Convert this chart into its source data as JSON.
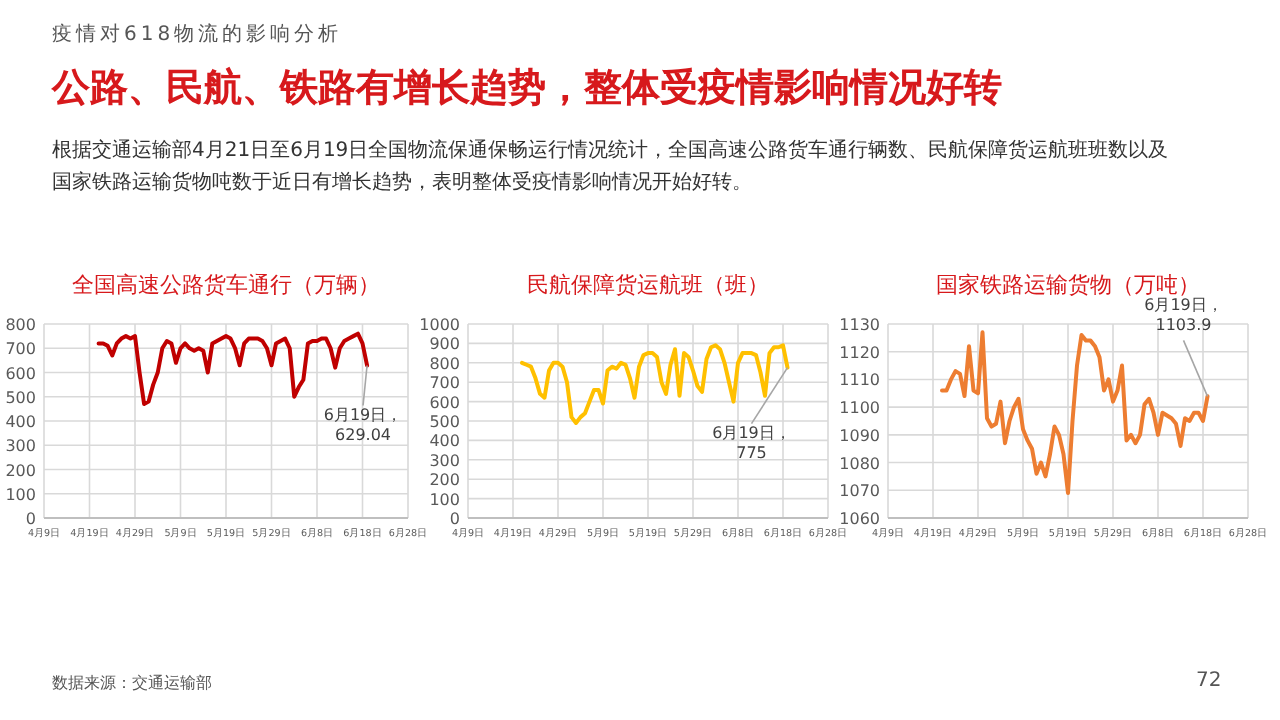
{
  "chart_data": [
    {
      "type": "other",
      "subtitle": "疫情对618物流的影响分析",
      "title": "公路、民航、铁路有增长趋势，整体受疫情影响情况好转",
      "annotations": [
        "根据交通运输部4月21日至6月19日全国物流保通保畅运行情况统计，全国高速公路货车通行辆数、民航保障货运航班班数以及国家铁路运输货物吨数于近日有增长趋势，表明整体受疫情影响情况开始好转。",
        "数据来源：交通运输部",
        "72"
      ]
    },
    {
      "type": "line",
      "title": "全国高速公路货车通行（万辆）",
      "grid": true,
      "x": [
        "--04-21",
        "--04-22",
        "--04-23",
        "--04-24",
        "--04-25",
        "--04-26",
        "--04-27",
        "--04-28",
        "--04-29",
        "--04-30",
        "--05-01",
        "--05-02",
        "--05-03",
        "--05-04",
        "--05-05",
        "--05-06",
        "--05-07",
        "--05-08",
        "--05-09",
        "--05-10",
        "--05-11",
        "--05-12",
        "--05-13",
        "--05-14",
        "--05-15",
        "--05-16",
        "--05-17",
        "--05-18",
        "--05-19",
        "--05-20",
        "--05-21",
        "--05-22",
        "--05-23",
        "--05-24",
        "--05-25",
        "--05-26",
        "--05-27",
        "--05-28",
        "--05-29",
        "--05-30",
        "--05-31",
        "--06-01",
        "--06-02",
        "--06-03",
        "--06-04",
        "--06-05",
        "--06-06",
        "--06-07",
        "--06-08",
        "--06-09",
        "--06-10",
        "--06-11",
        "--06-12",
        "--06-13",
        "--06-14",
        "--06-15",
        "--06-16",
        "--06-17",
        "--06-18",
        "--06-19"
      ],
      "series": [
        {
          "color": "#c00000",
          "values": [
            720,
            720,
            710,
            670,
            720,
            740,
            750,
            740,
            750,
            600,
            470,
            480,
            550,
            600,
            700,
            730,
            720,
            640,
            700,
            720,
            700,
            690,
            700,
            690,
            600,
            720,
            730,
            740,
            750,
            740,
            700,
            630,
            720,
            740,
            740,
            740,
            730,
            700,
            630,
            720,
            730,
            740,
            700,
            500,
            540,
            570,
            720,
            730,
            730,
            740,
            740,
            700,
            620,
            700,
            730,
            740,
            750,
            760,
            720,
            629.04
          ]
        }
      ],
      "xlim": [
        "--04-09",
        "--06-28"
      ],
      "xticks": [
        {
          "value": "--04-09",
          "label": "4月9日"
        },
        {
          "value": "--04-19",
          "label": "4月19日"
        },
        {
          "value": "--04-29",
          "label": "4月29日"
        },
        {
          "value": "--05-09",
          "label": "5月9日"
        },
        {
          "value": "--05-19",
          "label": "5月19日"
        },
        {
          "value": "--05-29",
          "label": "5月29日"
        },
        {
          "value": "--06-08",
          "label": "6月8日"
        },
        {
          "value": "--06-18",
          "label": "6月18日"
        },
        {
          "value": "--06-28",
          "label": "6月28日"
        }
      ],
      "ylim": [
        0,
        800
      ],
      "yticks": [
        0,
        100,
        200,
        300,
        400,
        500,
        600,
        700,
        800
      ],
      "annotations": [
        {
          "text": "6月19日，629.04",
          "x": "--06-19",
          "y": 629.04
        }
      ]
    },
    {
      "type": "line",
      "title": "民航保障货运航班（班）",
      "grid": true,
      "x": [
        "--04-21",
        "--04-22",
        "--04-23",
        "--04-24",
        "--04-25",
        "--04-26",
        "--04-27",
        "--04-28",
        "--04-29",
        "--04-30",
        "--05-01",
        "--05-02",
        "--05-03",
        "--05-04",
        "--05-05",
        "--05-06",
        "--05-07",
        "--05-08",
        "--05-09",
        "--05-10",
        "--05-11",
        "--05-12",
        "--05-13",
        "--05-14",
        "--05-15",
        "--05-16",
        "--05-17",
        "--05-18",
        "--05-19",
        "--05-20",
        "--05-21",
        "--05-22",
        "--05-23",
        "--05-24",
        "--05-25",
        "--05-26",
        "--05-27",
        "--05-28",
        "--05-29",
        "--05-30",
        "--05-31",
        "--06-01",
        "--06-02",
        "--06-03",
        "--06-04",
        "--06-05",
        "--06-06",
        "--06-07",
        "--06-08",
        "--06-09",
        "--06-10",
        "--06-11",
        "--06-12",
        "--06-13",
        "--06-14",
        "--06-15",
        "--06-16",
        "--06-17",
        "--06-18",
        "--06-19"
      ],
      "series": [
        {
          "color": "#ffc000",
          "values": [
            800,
            790,
            780,
            720,
            640,
            620,
            760,
            800,
            800,
            780,
            700,
            520,
            490,
            520,
            540,
            600,
            660,
            660,
            590,
            760,
            780,
            770,
            800,
            790,
            720,
            620,
            780,
            840,
            850,
            850,
            830,
            700,
            640,
            790,
            870,
            630,
            850,
            830,
            760,
            680,
            650,
            820,
            880,
            890,
            870,
            800,
            700,
            600,
            800,
            850,
            850,
            850,
            840,
            750,
            630,
            850,
            880,
            880,
            890,
            775
          ]
        }
      ],
      "xlim": [
        "--04-09",
        "--06-28"
      ],
      "xticks": [
        {
          "value": "--04-09",
          "label": "4月9日"
        },
        {
          "value": "--04-19",
          "label": "4月19日"
        },
        {
          "value": "--04-29",
          "label": "4月29日"
        },
        {
          "value": "--05-09",
          "label": "5月9日"
        },
        {
          "value": "--05-19",
          "label": "5月19日"
        },
        {
          "value": "--05-29",
          "label": "5月29日"
        },
        {
          "value": "--06-08",
          "label": "6月8日"
        },
        {
          "value": "--06-18",
          "label": "6月18日"
        },
        {
          "value": "--06-28",
          "label": "6月28日"
        }
      ],
      "ylim": [
        0,
        1000
      ],
      "yticks": [
        0,
        100,
        200,
        300,
        400,
        500,
        600,
        700,
        800,
        900,
        1000
      ],
      "annotations": [
        {
          "text": "6月19日，775",
          "x": "--06-19",
          "y": 775
        }
      ]
    },
    {
      "type": "line",
      "title": "国家铁路运输货物（万吨）",
      "grid": true,
      "x": [
        "--04-21",
        "--04-22",
        "--04-23",
        "--04-24",
        "--04-25",
        "--04-26",
        "--04-27",
        "--04-28",
        "--04-29",
        "--04-30",
        "--05-01",
        "--05-02",
        "--05-03",
        "--05-04",
        "--05-05",
        "--05-06",
        "--05-07",
        "--05-08",
        "--05-09",
        "--05-10",
        "--05-11",
        "--05-12",
        "--05-13",
        "--05-14",
        "--05-15",
        "--05-16",
        "--05-17",
        "--05-18",
        "--05-19",
        "--05-20",
        "--05-21",
        "--05-22",
        "--05-23",
        "--05-24",
        "--05-25",
        "--05-26",
        "--05-27",
        "--05-28",
        "--05-29",
        "--05-30",
        "--05-31",
        "--06-01",
        "--06-02",
        "--06-03",
        "--06-04",
        "--06-05",
        "--06-06",
        "--06-07",
        "--06-08",
        "--06-09",
        "--06-10",
        "--06-11",
        "--06-12",
        "--06-13",
        "--06-14",
        "--06-15",
        "--06-16",
        "--06-17",
        "--06-18",
        "--06-19"
      ],
      "series": [
        {
          "color": "#ed7d31",
          "values": [
            1106,
            1106,
            1110,
            1113,
            1112,
            1104,
            1122,
            1106,
            1105,
            1127,
            1096,
            1093,
            1094,
            1102,
            1087,
            1095,
            1100,
            1103,
            1092,
            1088,
            1085,
            1076,
            1080,
            1075,
            1083,
            1093,
            1090,
            1083,
            1069,
            1095,
            1115,
            1126,
            1124,
            1124,
            1122,
            1118,
            1106,
            1110,
            1102,
            1106,
            1115,
            1088,
            1090,
            1087,
            1090,
            1101,
            1103,
            1098,
            1090,
            1098,
            1097,
            1096,
            1094,
            1086,
            1096,
            1095,
            1098,
            1098,
            1095,
            1103.9
          ]
        }
      ],
      "xlim": [
        "--04-09",
        "--06-28"
      ],
      "xticks": [
        {
          "value": "--04-09",
          "label": "4月9日"
        },
        {
          "value": "--04-19",
          "label": "4月19日"
        },
        {
          "value": "--04-29",
          "label": "4月29日"
        },
        {
          "value": "--05-09",
          "label": "5月9日"
        },
        {
          "value": "--05-19",
          "label": "5月19日"
        },
        {
          "value": "--05-29",
          "label": "5月29日"
        },
        {
          "value": "--06-08",
          "label": "6月8日"
        },
        {
          "value": "--06-18",
          "label": "6月18日"
        },
        {
          "value": "--06-28",
          "label": "6月28日"
        }
      ],
      "ylim": [
        1060,
        1130
      ],
      "yticks": [
        1060,
        1070,
        1080,
        1090,
        1100,
        1110,
        1120,
        1130
      ],
      "annotations": [
        {
          "text": "6月19日，1103.9",
          "x": "--06-19",
          "y": 1103.9
        }
      ]
    }
  ]
}
